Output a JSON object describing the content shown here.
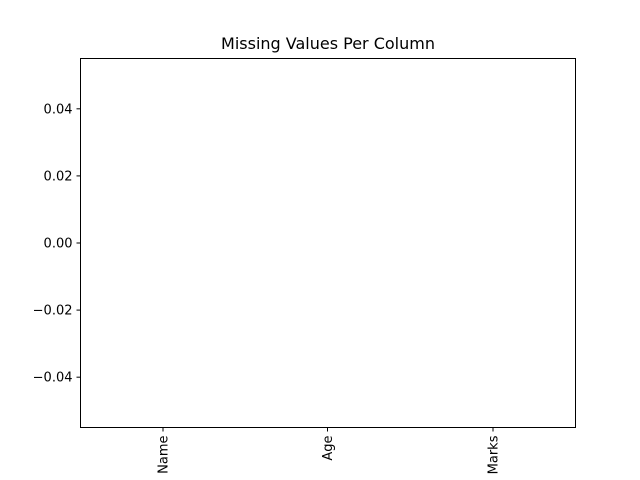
{
  "chart_data": {
    "type": "bar",
    "title": "Missing Values Per Column",
    "xlabel": "",
    "ylabel": "",
    "categories": [
      "Name",
      "Age",
      "Marks"
    ],
    "values": [
      0,
      0,
      0
    ],
    "ylim": [
      -0.055,
      0.055
    ],
    "yticks": [
      0.04,
      0.02,
      0.0,
      -0.02,
      -0.04
    ],
    "ytick_labels": [
      "0.04",
      "0.02",
      "0.00",
      "−0.02",
      "−0.04"
    ],
    "xtick_rotation": "vertical",
    "grid": false,
    "legend": "none",
    "colors": {
      "axis": "#000000",
      "background": "#ffffff",
      "bar": "#1f77b4"
    }
  }
}
